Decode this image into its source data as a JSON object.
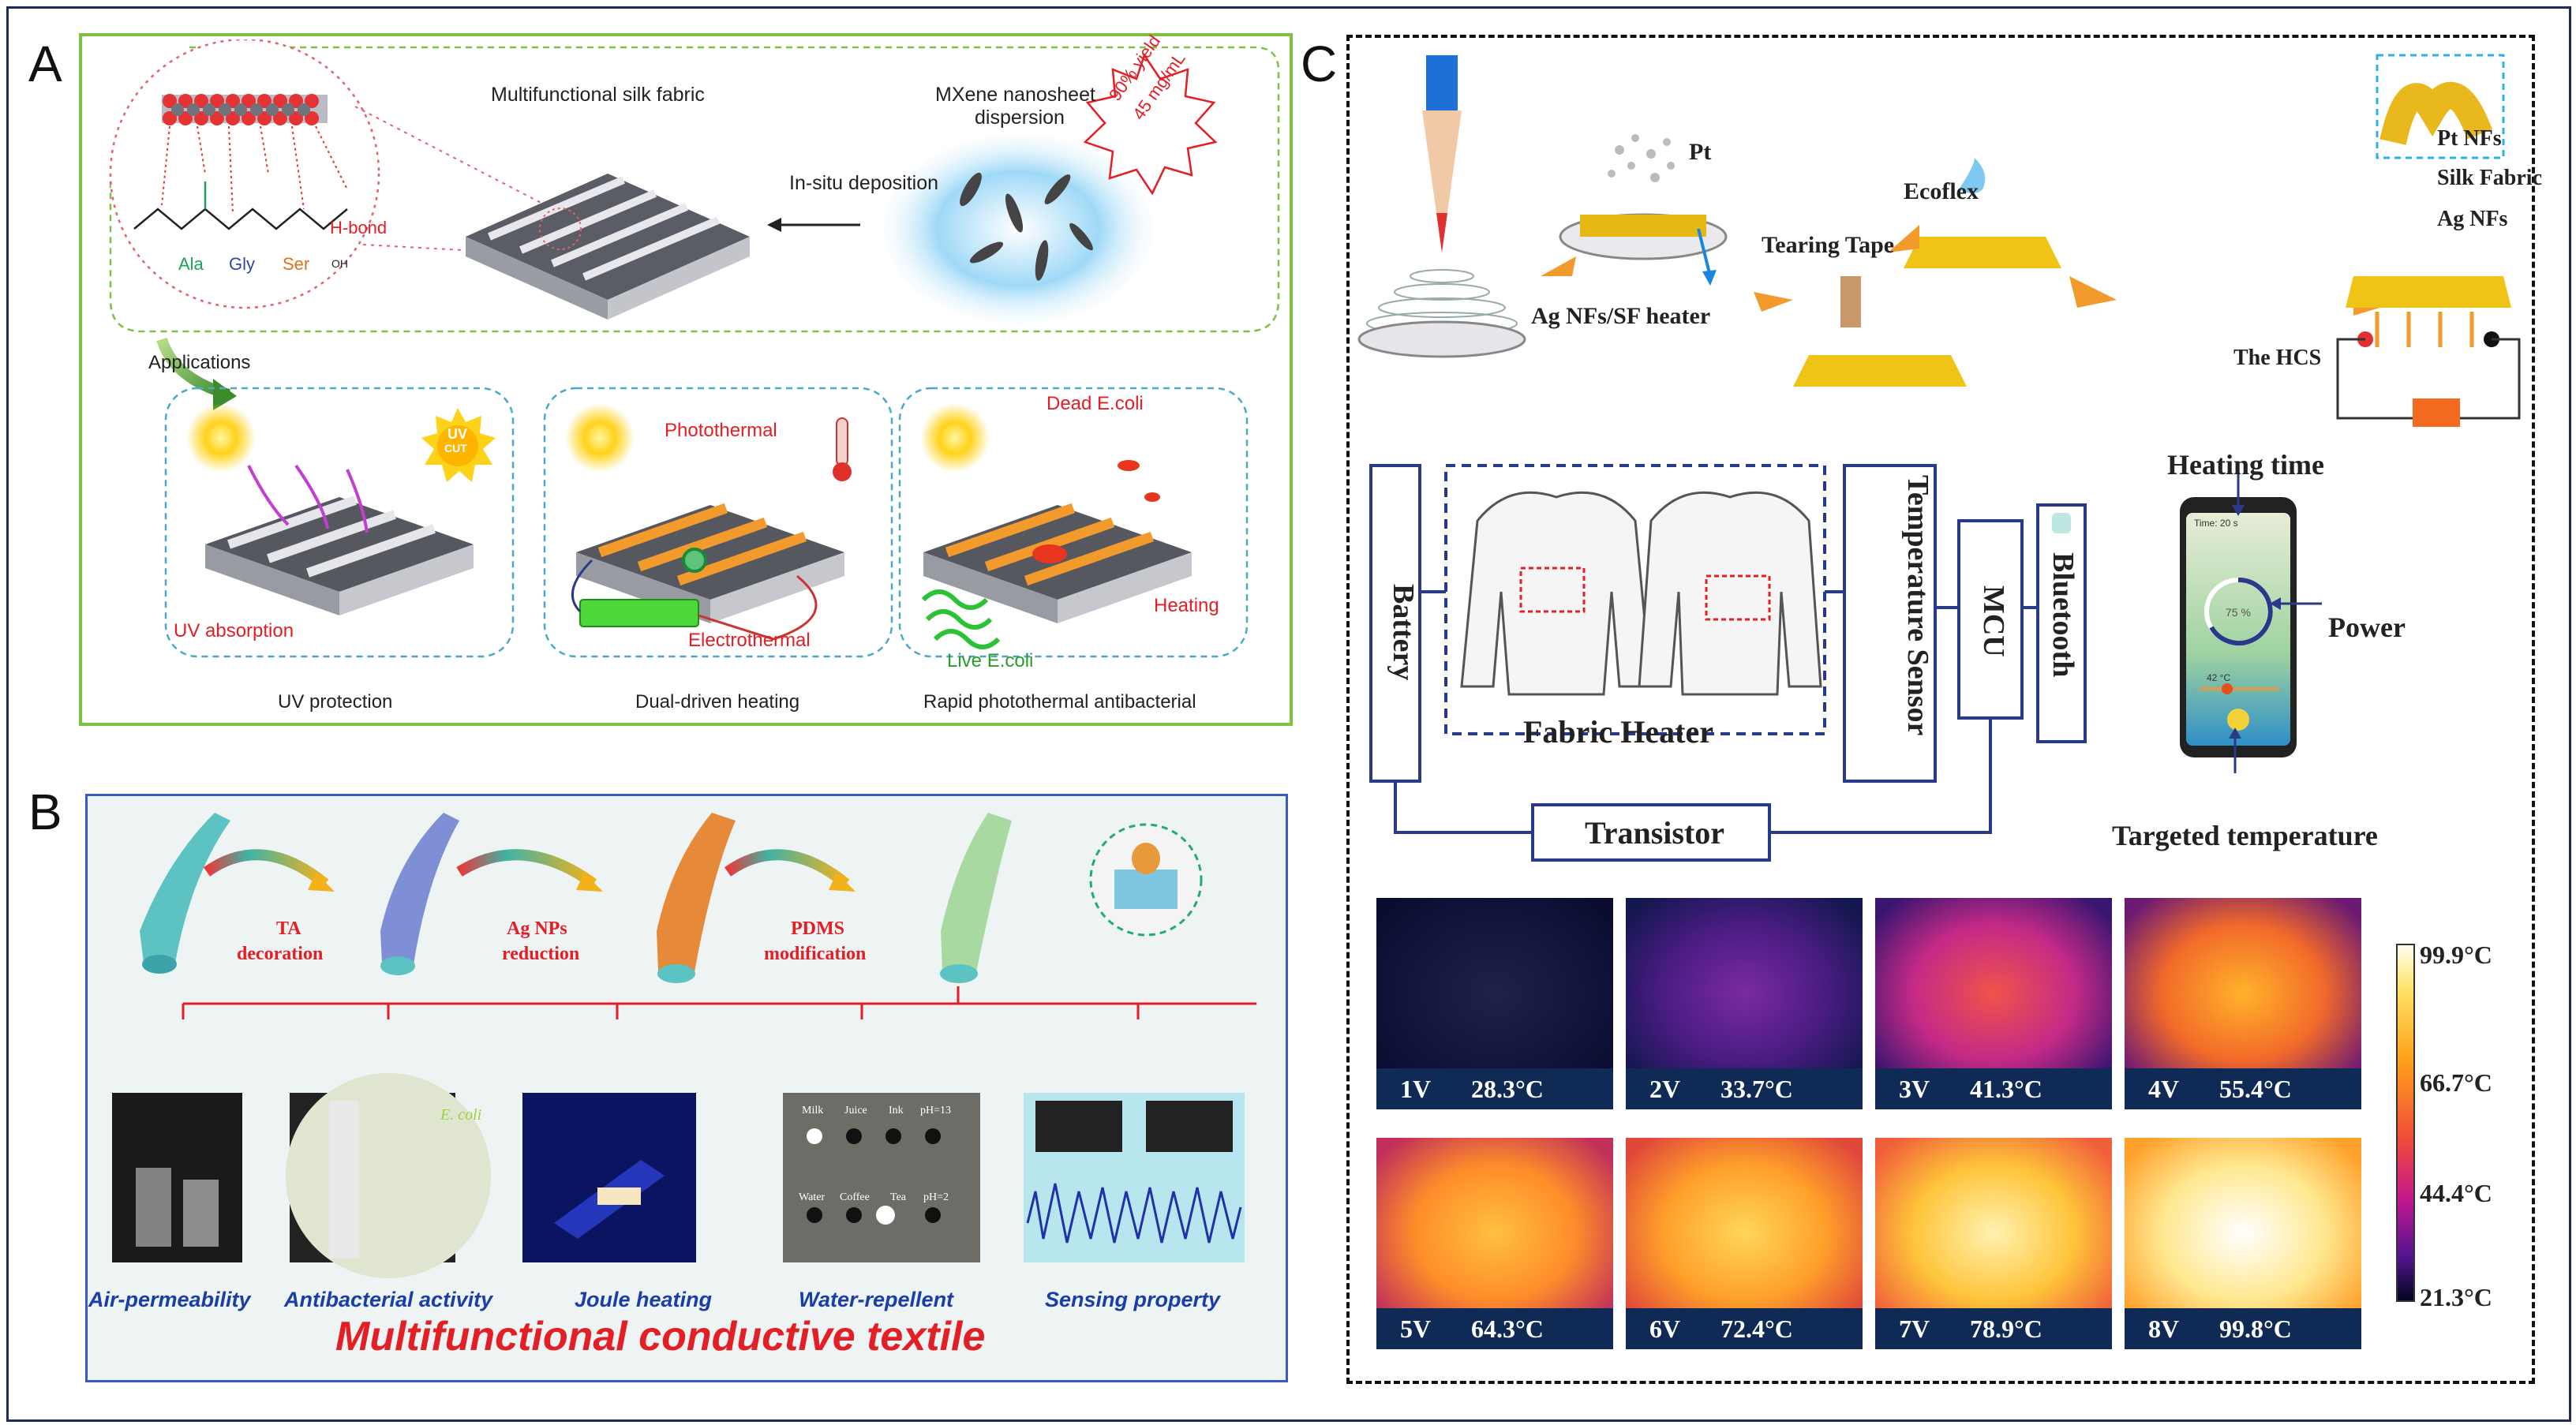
{
  "panels": {
    "a": "A",
    "b": "B",
    "c": "C"
  },
  "panel_a": {
    "fabric_title": "Multifunctional silk fabric",
    "mxene_title_1": "MXene nanosheet",
    "mxene_title_2": "dispersion",
    "yield_line1": "90% yield",
    "yield_line2": "45 mg/mL",
    "deposition": "In-situ deposition",
    "hbond": "H-bond",
    "ala": "Ala",
    "gly": "Gly",
    "ser": "Ser",
    "oh": "OH",
    "applications": "Applications",
    "uv_badge_top": "UV",
    "uv_badge_bottom": "CUT",
    "uv_absorption": "UV absorption",
    "photothermal": "Photothermal",
    "electrothermal": "Electrothermal",
    "dead": "Dead E.coli",
    "live": "Live E.coli",
    "heating": "Heating",
    "caption_uv": "UV protection",
    "caption_dual": "Dual-driven heating",
    "caption_rapid": "Rapid photothermal antibacterial"
  },
  "panel_b": {
    "step1_1": "TA",
    "step1_2": "decoration",
    "step2_1": "Ag NPs",
    "step2_2": "reduction",
    "step3_1": "PDMS",
    "step3_2": "modification",
    "ecoli": "E. coli",
    "milk": "Milk",
    "juice": "Juice",
    "ink": "Ink",
    "ph13": "pH=13",
    "water": "Water",
    "coffee": "Coffee",
    "tea": "Tea",
    "ph2": "pH=2",
    "cap_air": "Air-permeability",
    "cap_anti": "Antibacterial activity",
    "cap_joule": "Joule heating",
    "cap_water": "Water-repellent",
    "cap_sense": "Sensing property",
    "title": "Multifunctional conductive textile"
  },
  "panel_c": {
    "pt": "Pt",
    "ag_heater": "Ag NFs/SF heater",
    "tearing": "Tearing Tape",
    "ecoflex": "Ecoflex",
    "pt_nfs": "Pt NFs",
    "silk": "Silk Fabric",
    "ag_nfs": "Ag NFs",
    "hcs": "The HCS",
    "battery": "Battery",
    "fabric_heater": "Fabric Heater",
    "temp_sensor": "Temperature Sensor",
    "mcu": "MCU",
    "bluetooth": "Bluetooth",
    "transistor": "Transistor",
    "heating_time": "Heating time",
    "power": "Power",
    "targeted": "Targeted temperature",
    "phone_time": "Time: 20 s",
    "phone_pct": "75 %",
    "phone_temp": "42 °C",
    "colorbar": [
      "99.9°C",
      "66.7°C",
      "44.4°C",
      "21.3°C"
    ],
    "thermal": [
      {
        "v": "1V",
        "t": "28.3°C"
      },
      {
        "v": "2V",
        "t": "33.7°C"
      },
      {
        "v": "3V",
        "t": "41.3°C"
      },
      {
        "v": "4V",
        "t": "55.4°C"
      },
      {
        "v": "5V",
        "t": "64.3°C"
      },
      {
        "v": "6V",
        "t": "72.4°C"
      },
      {
        "v": "7V",
        "t": "78.9°C"
      },
      {
        "v": "8V",
        "t": "99.8°C"
      }
    ]
  },
  "colors": {
    "green": "#7dc243",
    "blue": "#2b4a9c",
    "red": "#e31e24",
    "navy": "#17215f"
  }
}
